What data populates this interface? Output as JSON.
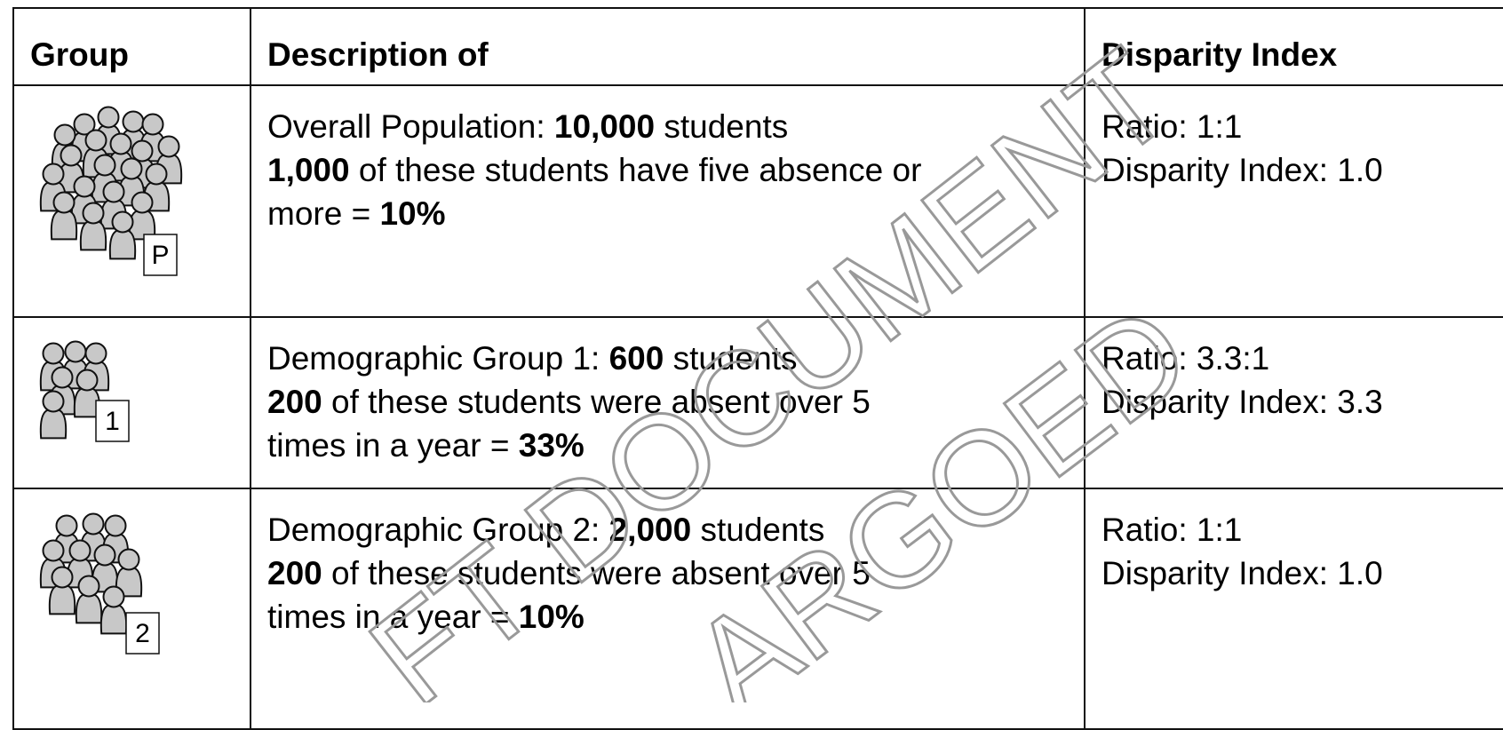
{
  "table": {
    "headers": [
      "Group",
      "Description of",
      "Disparity Index"
    ],
    "rows": [
      {
        "icon_label": "P",
        "description": [
          [
            {
              "text": "Overall Population: "
            },
            {
              "text": "10,000",
              "bold": true
            },
            {
              "text": " students"
            }
          ],
          [
            {
              "text": "1,000",
              "bold": true
            },
            {
              "text": " of these students have five absence or"
            }
          ],
          [
            {
              "text": "more = "
            },
            {
              "text": "10%",
              "bold": true
            }
          ]
        ],
        "index": [
          "Ratio: 1:1",
          "Disparity Index: 1.0"
        ]
      },
      {
        "icon_label": "1",
        "description": [
          [
            {
              "text": "Demographic Group 1: "
            },
            {
              "text": "600",
              "bold": true
            },
            {
              "text": " students"
            }
          ],
          [
            {
              "text": "200",
              "bold": true
            },
            {
              "text": " of these students were absent over 5"
            }
          ],
          [
            {
              "text": "times in a year = "
            },
            {
              "text": "33%",
              "bold": true
            }
          ]
        ],
        "index": [
          "Ratio: 3.3:1",
          "Disparity Index: 3.3"
        ]
      },
      {
        "icon_label": "2",
        "description": [
          [
            {
              "text": "Demographic Group 2: "
            },
            {
              "text": "2,000",
              "bold": true
            },
            {
              "text": " students"
            }
          ],
          [
            {
              "text": "200",
              "bold": true
            },
            {
              "text": " of these students were absent over 5"
            }
          ],
          [
            {
              "text": "times in a year = "
            },
            {
              "text": "10%",
              "bold": true
            }
          ]
        ],
        "index": [
          "Ratio: 1:1",
          "Disparity Index: 1.0"
        ]
      }
    ]
  },
  "watermark": [
    "FT DOCUMENT",
    "ARGOED"
  ]
}
